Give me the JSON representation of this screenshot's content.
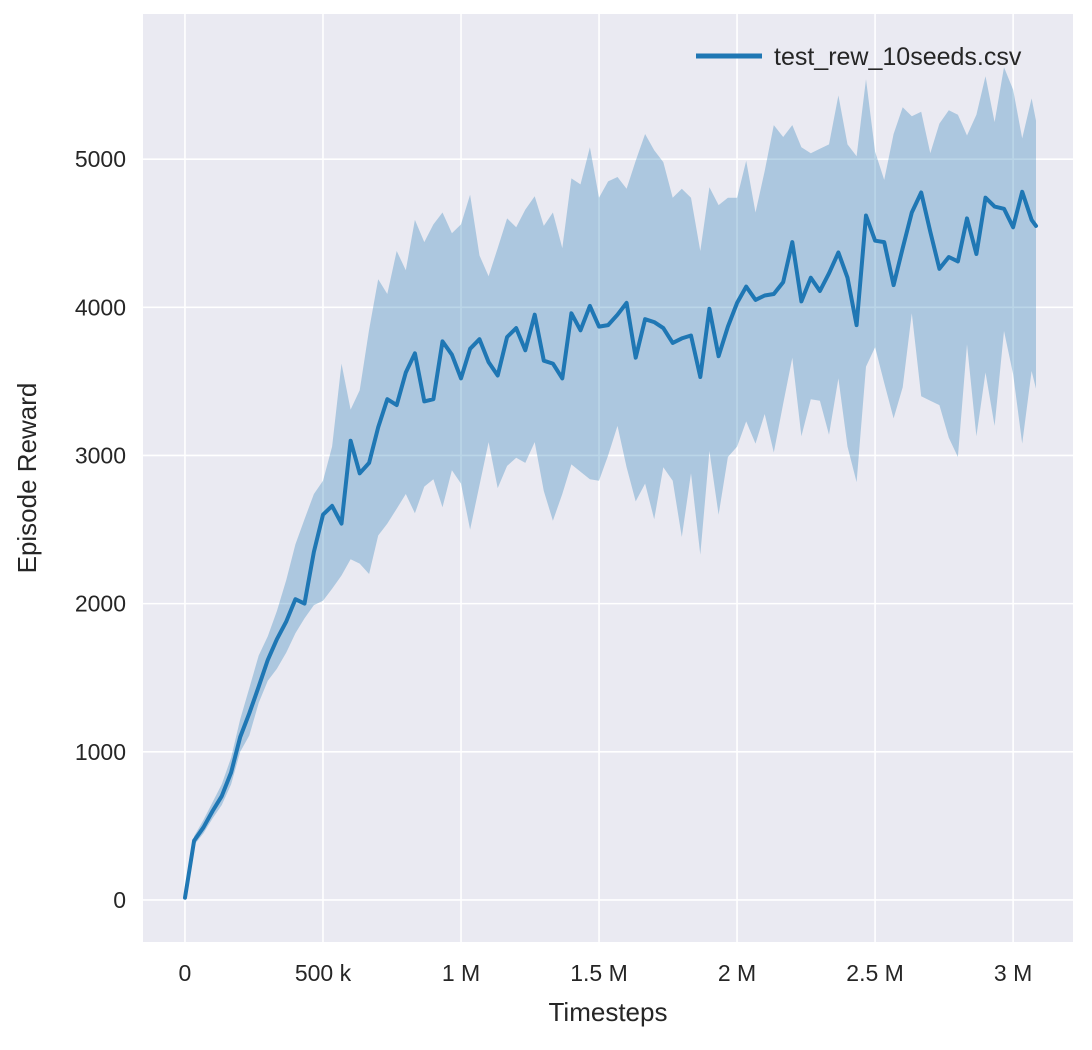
{
  "chart_data": {
    "type": "line",
    "title": "",
    "xlabel": "Timesteps",
    "ylabel": "Episode Reward",
    "legend": {
      "label": "test_rew_10seeds.csv",
      "position": "upper right"
    },
    "grid": true,
    "xlim_M": [
      -0.152,
      3.217
    ],
    "ylim": [
      -284,
      5980
    ],
    "xticks_values_M": [
      0,
      0.5,
      1.0,
      1.5,
      2.0,
      2.5,
      3.0
    ],
    "xticks_labels": [
      "0",
      "500 k",
      "1 M",
      "1.5 M",
      "2 M",
      "2.5 M",
      "3 M"
    ],
    "yticks_values": [
      0,
      1000,
      2000,
      3000,
      4000,
      5000
    ],
    "yticks_labels": [
      "0",
      "1000",
      "2000",
      "3000",
      "4000",
      "5000"
    ],
    "colors": {
      "line": "#1f77b4",
      "band": "rgba(31,119,180,0.3)",
      "plot_bg": "#eaeaf2",
      "grid": "#ffffff",
      "text": "#262626",
      "fig_bg": "#ffffff"
    },
    "series": [
      {
        "name": "test_rew_10seeds.csv",
        "x_M": [
          0,
          0.033,
          0.067,
          0.1,
          0.133,
          0.167,
          0.2,
          0.233,
          0.267,
          0.3,
          0.333,
          0.367,
          0.4,
          0.433,
          0.467,
          0.5,
          0.533,
          0.567,
          0.6,
          0.633,
          0.667,
          0.7,
          0.733,
          0.767,
          0.8,
          0.833,
          0.867,
          0.9,
          0.933,
          0.967,
          1.0,
          1.033,
          1.067,
          1.1,
          1.133,
          1.167,
          1.2,
          1.233,
          1.267,
          1.3,
          1.333,
          1.367,
          1.4,
          1.433,
          1.467,
          1.5,
          1.533,
          1.567,
          1.6,
          1.633,
          1.667,
          1.7,
          1.733,
          1.767,
          1.8,
          1.833,
          1.867,
          1.9,
          1.933,
          1.967,
          2.0,
          2.033,
          2.067,
          2.1,
          2.133,
          2.167,
          2.2,
          2.233,
          2.267,
          2.3,
          2.333,
          2.367,
          2.4,
          2.433,
          2.467,
          2.5,
          2.533,
          2.567,
          2.6,
          2.633,
          2.667,
          2.7,
          2.733,
          2.767,
          2.8,
          2.833,
          2.867,
          2.9,
          2.933,
          2.967,
          3.0,
          3.033,
          3.067,
          3.083
        ],
        "mean": [
          15,
          400,
          490,
          600,
          700,
          860,
          1100,
          1260,
          1440,
          1620,
          1760,
          1880,
          2030,
          2000,
          2350,
          2600,
          2660,
          2540,
          3100,
          2880,
          2950,
          3190,
          3380,
          3340,
          3560,
          3690,
          3365,
          3380,
          3770,
          3680,
          3520,
          3720,
          3785,
          3630,
          3540,
          3800,
          3860,
          3710,
          3950,
          3640,
          3620,
          3520,
          3960,
          3845,
          4010,
          3870,
          3880,
          3950,
          4030,
          3660,
          3920,
          3900,
          3860,
          3760,
          3790,
          3810,
          3530,
          3990,
          3670,
          3870,
          4030,
          4140,
          4050,
          4080,
          4090,
          4170,
          4440,
          4040,
          4200,
          4110,
          4230,
          4370,
          4200,
          3880,
          4620,
          4450,
          4440,
          4150,
          4400,
          4640,
          4775,
          4510,
          4260,
          4340,
          4310,
          4600,
          4360,
          4740,
          4680,
          4665,
          4540,
          4780,
          4590,
          4550
        ],
        "lower": [
          5,
          370,
          450,
          550,
          640,
          780,
          1000,
          1110,
          1330,
          1480,
          1560,
          1670,
          1800,
          1900,
          1990,
          2020,
          2100,
          2190,
          2300,
          2270,
          2200,
          2460,
          2540,
          2640,
          2740,
          2610,
          2790,
          2840,
          2650,
          2900,
          2810,
          2500,
          2800,
          3090,
          2780,
          2930,
          2985,
          2950,
          3090,
          2760,
          2560,
          2740,
          2940,
          2890,
          2840,
          2830,
          3000,
          3200,
          2920,
          2690,
          2810,
          2570,
          2920,
          2830,
          2450,
          2880,
          2330,
          3030,
          2600,
          2990,
          3060,
          3230,
          3080,
          3280,
          3020,
          3350,
          3660,
          3130,
          3380,
          3370,
          3140,
          3520,
          3060,
          2820,
          3600,
          3730,
          3490,
          3250,
          3460,
          3960,
          3400,
          3370,
          3340,
          3120,
          2990,
          3750,
          3130,
          3560,
          3200,
          3840,
          3550,
          3080,
          3570,
          3450
        ],
        "upper": [
          30,
          430,
          540,
          660,
          780,
          960,
          1220,
          1430,
          1650,
          1780,
          1950,
          2160,
          2400,
          2570,
          2740,
          2830,
          3060,
          3620,
          3310,
          3440,
          3850,
          4190,
          4090,
          4380,
          4250,
          4590,
          4440,
          4560,
          4640,
          4500,
          4560,
          4760,
          4350,
          4210,
          4400,
          4600,
          4540,
          4660,
          4750,
          4550,
          4640,
          4400,
          4870,
          4830,
          5080,
          4740,
          4850,
          4880,
          4800,
          4990,
          5170,
          5060,
          4980,
          4740,
          4800,
          4740,
          4380,
          4810,
          4690,
          4740,
          4740,
          4990,
          4640,
          4920,
          5230,
          5150,
          5230,
          5080,
          5040,
          5070,
          5100,
          5430,
          5100,
          5020,
          5540,
          5050,
          4860,
          5170,
          5350,
          5290,
          5320,
          5040,
          5240,
          5330,
          5300,
          5160,
          5300,
          5560,
          5250,
          5620,
          5470,
          5140,
          5410,
          5260
        ]
      }
    ]
  }
}
